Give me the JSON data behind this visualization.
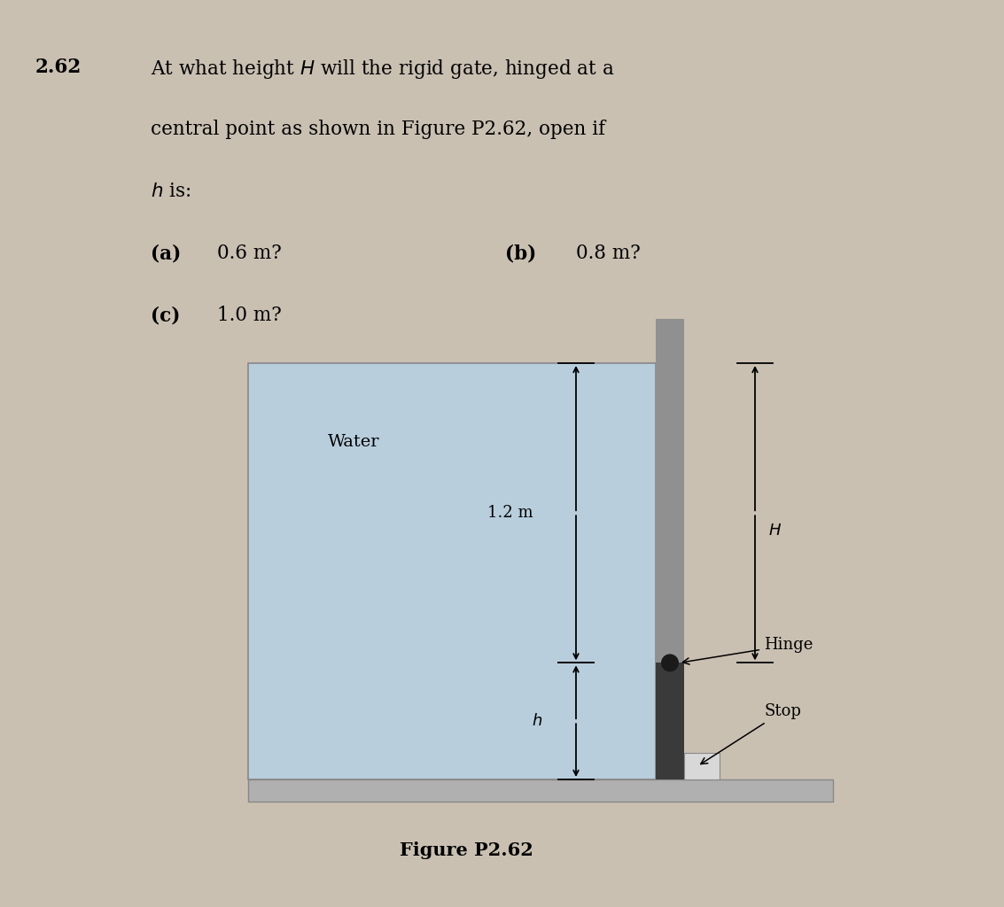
{
  "bg_color": "#c9c0b2",
  "water_color": "#b8cedd",
  "gate_upper_color": "#909090",
  "gate_lower_color": "#3a3a3a",
  "floor_color": "#b0b0b0",
  "stop_color": "#d8d8d8",
  "hinge_color": "#1a1a1a",
  "text_color": "#000000",
  "line_color": "#000000",
  "title_num": "2.62",
  "line1": "At what height $H$ will the rigid gate, hinged at a",
  "line2": "central point as shown in Figure P2.62, open if",
  "line3": "$h$ is:",
  "qa_label": "(a)",
  "qa_val": "0.6 m?",
  "qb_label": "(b)",
  "qb_val": "0.8 m?",
  "qc_label": "(c)",
  "qc_val": "1.0 m?",
  "water_label": "Water",
  "dim_12": "1.2 m",
  "dim_h": "$h$",
  "dim_H": "$H$",
  "hinge_label": "Hinge",
  "stop_label": "Stop",
  "fig_caption": "Figure P2.62"
}
